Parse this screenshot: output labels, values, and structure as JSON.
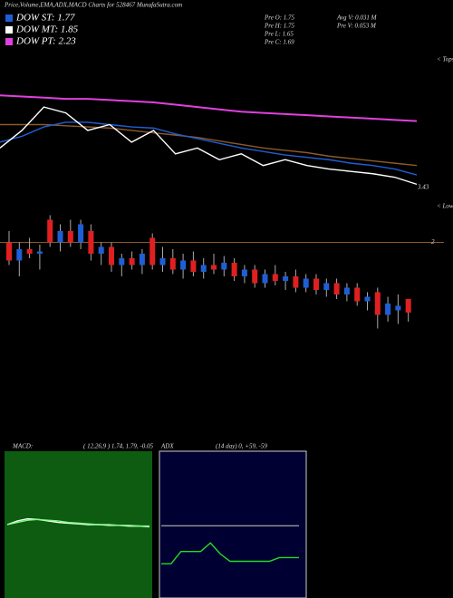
{
  "header": {
    "title": "Price,Volume,EMA,ADX,MACD Charts for 528467 MunafaSutra.com"
  },
  "legend": [
    {
      "label": "DOW ST: 1.77",
      "color": "#1f5fd6"
    },
    {
      "label": "DOW MT: 1.85",
      "color": "#ffffff"
    },
    {
      "label": "DOW PT: 2.23",
      "color": "#e040e0"
    }
  ],
  "info": [
    "Pre   O: 1.75",
    "Pre   H: 1.75",
    "Pre   L: 1.65",
    "Pre   C: 1.69",
    "Avg V: 0.031 M",
    "Pre   V: 0.053 M"
  ],
  "chart_data": [
    {
      "type": "line",
      "annotations": [
        "< Tops",
        "3.43"
      ],
      "ylim": [
        1.6,
        2.8
      ],
      "series": [
        {
          "color": "#e040e0",
          "values": [
            2.45,
            2.44,
            2.43,
            2.42,
            2.42,
            2.41,
            2.4,
            2.39,
            2.37,
            2.35,
            2.33,
            2.31,
            2.3,
            2.29,
            2.28,
            2.27,
            2.26,
            2.25,
            2.24,
            2.23
          ]
        },
        {
          "color": "#8b5a2b",
          "values": [
            2.2,
            2.2,
            2.2,
            2.19,
            2.18,
            2.17,
            2.15,
            2.13,
            2.11,
            2.09,
            2.06,
            2.03,
            2.0,
            1.98,
            1.96,
            1.93,
            1.91,
            1.89,
            1.87,
            1.85
          ]
        },
        {
          "color": "#1f5fd6",
          "values": [
            2.05,
            2.1,
            2.18,
            2.22,
            2.22,
            2.2,
            2.18,
            2.17,
            2.12,
            2.08,
            2.04,
            2.0,
            1.97,
            1.94,
            1.92,
            1.9,
            1.87,
            1.85,
            1.82,
            1.77
          ]
        },
        {
          "color": "#ffffff",
          "values": [
            2.0,
            2.15,
            2.35,
            2.3,
            2.15,
            2.2,
            2.05,
            2.15,
            1.95,
            2.0,
            1.9,
            1.95,
            1.85,
            1.9,
            1.85,
            1.82,
            1.8,
            1.78,
            1.75,
            1.69
          ]
        }
      ]
    },
    {
      "type": "candlestick",
      "annotations": [
        "< Lows"
      ],
      "ylim": [
        1.55,
        2.15
      ],
      "yticks": [
        2
      ],
      "up_color": "#1f5fd6",
      "down_color": "#e02020",
      "open": [
        2.0,
        1.92,
        1.97,
        1.95,
        2.1,
        2.0,
        2.05,
        2.0,
        2.05,
        1.95,
        1.98,
        1.9,
        1.93,
        1.9,
        2.02,
        1.9,
        1.93,
        1.88,
        1.92,
        1.87,
        1.9,
        1.88,
        1.91,
        1.85,
        1.88,
        1.82,
        1.86,
        1.83,
        1.85,
        1.8,
        1.84,
        1.79,
        1.82,
        1.77,
        1.8,
        1.74,
        1.78,
        1.68,
        1.7,
        1.75
      ],
      "high": [
        2.05,
        2.0,
        2.02,
        1.99,
        2.12,
        2.08,
        2.1,
        2.1,
        2.08,
        2.0,
        2.0,
        1.95,
        1.96,
        1.97,
        2.04,
        1.98,
        1.97,
        1.95,
        1.96,
        1.93,
        1.95,
        1.94,
        1.93,
        1.9,
        1.9,
        1.88,
        1.9,
        1.87,
        1.88,
        1.86,
        1.86,
        1.84,
        1.84,
        1.82,
        1.82,
        1.78,
        1.8,
        1.76,
        1.77,
        1.75
      ],
      "low": [
        1.9,
        1.85,
        1.93,
        1.88,
        1.98,
        1.96,
        1.98,
        1.97,
        1.92,
        1.9,
        1.87,
        1.85,
        1.88,
        1.86,
        1.88,
        1.87,
        1.86,
        1.84,
        1.85,
        1.84,
        1.86,
        1.85,
        1.83,
        1.82,
        1.8,
        1.8,
        1.81,
        1.79,
        1.78,
        1.78,
        1.77,
        1.76,
        1.75,
        1.74,
        1.72,
        1.7,
        1.62,
        1.65,
        1.64,
        1.65
      ],
      "close": [
        1.92,
        1.97,
        1.95,
        1.96,
        2.0,
        2.05,
        2.0,
        2.08,
        1.95,
        1.98,
        1.9,
        1.93,
        1.9,
        1.95,
        1.9,
        1.93,
        1.88,
        1.92,
        1.87,
        1.9,
        1.88,
        1.91,
        1.85,
        1.88,
        1.82,
        1.86,
        1.83,
        1.85,
        1.8,
        1.84,
        1.79,
        1.82,
        1.77,
        1.8,
        1.74,
        1.76,
        1.68,
        1.73,
        1.72,
        1.69
      ]
    },
    {
      "type": "line",
      "title": "MACD:",
      "subtitle": "( 12,26,9 ) 1.74, 1.79, -0.05",
      "ylim": [
        -1,
        1
      ],
      "series": [
        {
          "color": "#ffffff",
          "values": [
            0.0,
            0.05,
            0.08,
            0.07,
            0.05,
            0.03,
            0.02,
            0.01,
            0.0,
            0.0,
            -0.01,
            -0.01,
            -0.02,
            -0.02,
            -0.03
          ]
        },
        {
          "color": "#7fff7f",
          "values": [
            0.0,
            0.03,
            0.06,
            0.07,
            0.06,
            0.05,
            0.03,
            0.02,
            0.01,
            0.0,
            0.0,
            -0.01,
            -0.01,
            -0.02,
            -0.02
          ]
        }
      ]
    },
    {
      "type": "line",
      "title": "ADX",
      "subtitle": "(14 day) 0, +59, -59",
      "ylim": [
        0,
        120
      ],
      "series": [
        {
          "color": "#999999",
          "values": [
            59,
            59,
            59,
            59,
            59,
            59,
            59,
            59,
            59,
            59,
            59,
            59,
            59,
            59,
            59
          ]
        },
        {
          "color": "#22dd22",
          "values": [
            28,
            28,
            38,
            38,
            38,
            45,
            36,
            30,
            30,
            30,
            30,
            30,
            33,
            33,
            33
          ]
        }
      ]
    }
  ]
}
